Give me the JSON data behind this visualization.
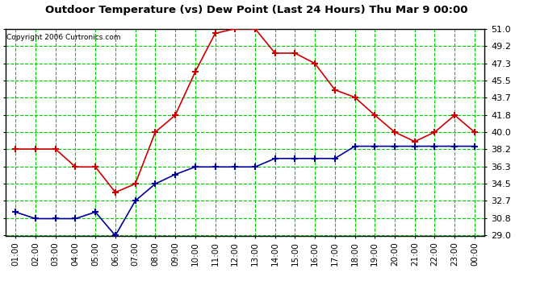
{
  "title": "Outdoor Temperature (vs) Dew Point (Last 24 Hours) Thu Mar 9 00:00",
  "copyright": "Copyright 2006 Curtronics.com",
  "x_labels": [
    "01:00",
    "02:00",
    "03:00",
    "04:00",
    "05:00",
    "06:00",
    "07:00",
    "08:00",
    "09:00",
    "10:00",
    "11:00",
    "12:00",
    "13:00",
    "14:00",
    "15:00",
    "16:00",
    "17:00",
    "18:00",
    "19:00",
    "20:00",
    "21:00",
    "22:00",
    "23:00",
    "00:00"
  ],
  "y_ticks": [
    29.0,
    30.8,
    32.7,
    34.5,
    36.3,
    38.2,
    40.0,
    41.8,
    43.7,
    45.5,
    47.3,
    49.2,
    51.0
  ],
  "ylim": [
    29.0,
    51.0
  ],
  "temp_color": "#cc0000",
  "dew_color": "#000099",
  "grid_color": "#00cc00",
  "bg_color": "#ffffff",
  "temp_values": [
    38.2,
    38.2,
    38.2,
    36.3,
    36.3,
    33.6,
    34.5,
    40.0,
    41.8,
    46.4,
    50.5,
    51.0,
    51.0,
    48.4,
    48.4,
    47.3,
    44.5,
    43.7,
    41.8,
    40.0,
    39.0,
    40.0,
    41.8,
    40.0
  ],
  "dew_values": [
    31.5,
    30.8,
    30.8,
    30.8,
    31.5,
    29.0,
    32.7,
    34.5,
    35.5,
    36.3,
    36.3,
    36.3,
    36.3,
    37.2,
    37.2,
    37.2,
    37.2,
    38.5,
    38.5,
    38.5,
    38.5,
    38.5,
    38.5,
    38.5
  ]
}
